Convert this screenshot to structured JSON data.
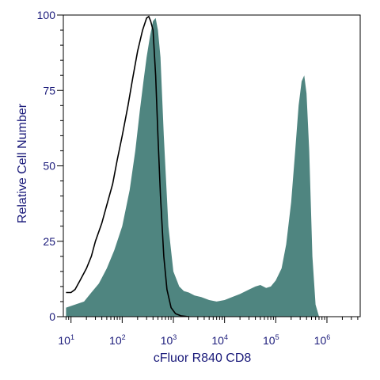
{
  "chart_data": {
    "type": "area",
    "xlabel": "cFluor R840 CD8",
    "ylabel": "Relative Cell Number",
    "x_scale": "log",
    "xlim": [
      10,
      1000000
    ],
    "ylim": [
      0,
      100
    ],
    "x_tick_labels": [
      {
        "value": 10,
        "base": "10",
        "exp": "1"
      },
      {
        "value": 100,
        "base": "10",
        "exp": "2"
      },
      {
        "value": 1000,
        "base": "10",
        "exp": "3"
      },
      {
        "value": 10000,
        "base": "10",
        "exp": "4"
      },
      {
        "value": 100000,
        "base": "10",
        "exp": "5"
      },
      {
        "value": 1000000,
        "base": "10",
        "exp": "6"
      }
    ],
    "y_ticks": [
      0,
      25,
      50,
      75,
      100
    ],
    "series": [
      {
        "style": "filled",
        "color": "#4f8580",
        "x": [
          8,
          12,
          18,
          25,
          35,
          50,
          70,
          100,
          140,
          180,
          220,
          260,
          300,
          350,
          400,
          450,
          500,
          560,
          650,
          800,
          1000,
          1300,
          1600,
          2000,
          2600,
          3500,
          5000,
          7000,
          10000,
          14000,
          20000,
          30000,
          40000,
          50000,
          65000,
          80000,
          100000,
          130000,
          160000,
          200000,
          240000,
          280000,
          320000,
          360000,
          400000,
          450000,
          520000,
          600000,
          700000
        ],
        "y": [
          3,
          4,
          5,
          8,
          11,
          16,
          22,
          30,
          42,
          55,
          68,
          78,
          86,
          93,
          98,
          99,
          95,
          86,
          60,
          30,
          15,
          10,
          8.5,
          8,
          7,
          6.5,
          5.5,
          5,
          5.5,
          6.5,
          7.5,
          9,
          10,
          10.5,
          9.5,
          10,
          12,
          16,
          24,
          38,
          55,
          70,
          78,
          80,
          74,
          55,
          20,
          4,
          0
        ]
      },
      {
        "style": "outline",
        "color": "#000000",
        "x": [
          8,
          10,
          12,
          15,
          20,
          25,
          30,
          40,
          50,
          65,
          80,
          100,
          130,
          160,
          200,
          250,
          300,
          330,
          360,
          400,
          450,
          500,
          560,
          650,
          750,
          900,
          1100,
          1400,
          2000
        ],
        "y": [
          8,
          8,
          9,
          12,
          16,
          20,
          25,
          31,
          37,
          44,
          52,
          60,
          70,
          79,
          88,
          95,
          99,
          99.5,
          98,
          95,
          80,
          60,
          40,
          20,
          9,
          3,
          1,
          0.3,
          0
        ]
      }
    ]
  }
}
